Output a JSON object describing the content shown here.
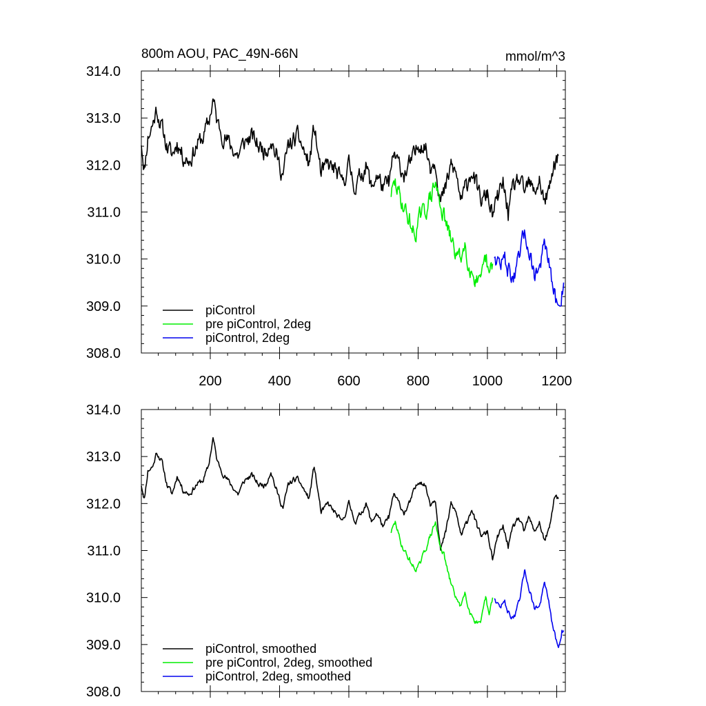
{
  "chart_data": [
    {
      "type": "line",
      "title_left": "800m AOU, PAC_49N-66N",
      "title_right": "mmol/m^3",
      "xlim": [
        1,
        1225
      ],
      "ylim": [
        308,
        314
      ],
      "x_ticks": [
        200,
        400,
        600,
        800,
        1000,
        1200
      ],
      "x_tick_labels": [
        "200",
        "400",
        "600",
        "800",
        "1000",
        "1200"
      ],
      "y_ticks": [
        308,
        309,
        310,
        311,
        312,
        313,
        314
      ],
      "y_tick_labels": [
        "308.0",
        "309.0",
        "310.0",
        "311.0",
        "312.0",
        "313.0",
        "314.0"
      ],
      "grid": false,
      "legend_position": "bottom-left",
      "series": [
        {
          "name": "piControl",
          "color": "#000000",
          "noise": 0.16,
          "seed": 11,
          "points": [
            [
              1,
              312.5
            ],
            [
              10,
              311.9
            ],
            [
              20,
              312.6
            ],
            [
              35,
              312.9
            ],
            [
              45,
              313.2
            ],
            [
              60,
              312.8
            ],
            [
              75,
              312.4
            ],
            [
              90,
              312.2
            ],
            [
              105,
              312.5
            ],
            [
              120,
              312.2
            ],
            [
              140,
              312.1
            ],
            [
              160,
              312.4
            ],
            [
              180,
              312.6
            ],
            [
              195,
              312.9
            ],
            [
              208,
              313.4
            ],
            [
              220,
              312.9
            ],
            [
              240,
              312.6
            ],
            [
              260,
              312.4
            ],
            [
              280,
              312.2
            ],
            [
              300,
              312.5
            ],
            [
              320,
              312.6
            ],
            [
              340,
              312.4
            ],
            [
              360,
              312.3
            ],
            [
              375,
              312.6
            ],
            [
              390,
              312.2
            ],
            [
              410,
              311.8
            ],
            [
              425,
              312.4
            ],
            [
              440,
              312.5
            ],
            [
              455,
              312.6
            ],
            [
              470,
              312.3
            ],
            [
              485,
              312.0
            ],
            [
              500,
              312.8
            ],
            [
              510,
              312.3
            ],
            [
              520,
              311.8
            ],
            [
              540,
              312.0
            ],
            [
              560,
              311.9
            ],
            [
              580,
              311.6
            ],
            [
              600,
              312.0
            ],
            [
              620,
              311.5
            ],
            [
              635,
              311.8
            ],
            [
              650,
              312.0
            ],
            [
              665,
              311.5
            ],
            [
              680,
              311.8
            ],
            [
              700,
              311.5
            ],
            [
              715,
              311.6
            ],
            [
              730,
              312.2
            ],
            [
              745,
              312.0
            ],
            [
              760,
              311.8
            ],
            [
              775,
              312.0
            ],
            [
              790,
              312.2
            ],
            [
              805,
              312.5
            ],
            [
              820,
              312.4
            ],
            [
              835,
              312.0
            ],
            [
              850,
              312.1
            ],
            [
              865,
              311.2
            ],
            [
              880,
              311.5
            ],
            [
              895,
              312.0
            ],
            [
              910,
              311.8
            ],
            [
              925,
              311.2
            ],
            [
              940,
              311.6
            ],
            [
              955,
              311.9
            ],
            [
              970,
              311.5
            ],
            [
              985,
              311.2
            ],
            [
              1000,
              311.4
            ],
            [
              1015,
              310.9
            ],
            [
              1030,
              311.3
            ],
            [
              1045,
              311.6
            ],
            [
              1060,
              311.0
            ],
            [
              1075,
              311.5
            ],
            [
              1090,
              311.7
            ],
            [
              1105,
              311.4
            ],
            [
              1120,
              311.6
            ],
            [
              1135,
              311.4
            ],
            [
              1150,
              311.7
            ],
            [
              1165,
              311.2
            ],
            [
              1180,
              311.5
            ],
            [
              1195,
              312.1
            ],
            [
              1205,
              312.2
            ]
          ]
        },
        {
          "name": "pre piControl, 2deg",
          "color": "#00ee00",
          "noise": 0.16,
          "seed": 29,
          "points": [
            [
              722,
              311.4
            ],
            [
              735,
              311.6
            ],
            [
              748,
              311.3
            ],
            [
              760,
              311.1
            ],
            [
              775,
              310.8
            ],
            [
              790,
              310.5
            ],
            [
              805,
              310.9
            ],
            [
              820,
              311.0
            ],
            [
              835,
              311.3
            ],
            [
              850,
              311.6
            ],
            [
              860,
              311.3
            ],
            [
              875,
              310.9
            ],
            [
              890,
              310.5
            ],
            [
              905,
              310.2
            ],
            [
              920,
              310.0
            ],
            [
              935,
              310.3
            ],
            [
              950,
              309.8
            ],
            [
              965,
              309.6
            ],
            [
              980,
              309.4
            ],
            [
              995,
              310.0
            ],
            [
              1005,
              309.6
            ],
            [
              1015,
              309.9
            ]
          ]
        },
        {
          "name": "piControl, 2deg",
          "color": "#0000ee",
          "noise": 0.16,
          "seed": 47,
          "points": [
            [
              1020,
              310.1
            ],
            [
              1035,
              309.9
            ],
            [
              1050,
              310.0
            ],
            [
              1065,
              309.7
            ],
            [
              1080,
              309.6
            ],
            [
              1095,
              310.1
            ],
            [
              1108,
              310.6
            ],
            [
              1120,
              310.2
            ],
            [
              1135,
              309.7
            ],
            [
              1150,
              309.8
            ],
            [
              1165,
              310.3
            ],
            [
              1175,
              310.0
            ],
            [
              1185,
              309.5
            ],
            [
              1195,
              309.2
            ],
            [
              1205,
              308.9
            ],
            [
              1215,
              309.3
            ],
            [
              1220,
              309.5
            ]
          ]
        }
      ]
    },
    {
      "type": "line",
      "xlim": [
        1,
        1225
      ],
      "ylim": [
        308,
        314
      ],
      "y_ticks": [
        308,
        309,
        310,
        311,
        312,
        313,
        314
      ],
      "y_tick_labels": [
        "308.0",
        "309.0",
        "310.0",
        "311.0",
        "312.0",
        "313.0",
        "314.0"
      ],
      "x_ticks": [
        200,
        400,
        600,
        800,
        1000,
        1200
      ],
      "grid": false,
      "legend_position": "bottom-left",
      "series": [
        {
          "name": "piControl, smoothed",
          "color": "#000000",
          "noise": 0.05,
          "seed": 11,
          "points": [
            [
              1,
              312.4
            ],
            [
              10,
              312.1
            ],
            [
              20,
              312.7
            ],
            [
              35,
              312.8
            ],
            [
              45,
              313.1
            ],
            [
              60,
              312.9
            ],
            [
              75,
              312.4
            ],
            [
              90,
              312.2
            ],
            [
              105,
              312.6
            ],
            [
              120,
              312.3
            ],
            [
              140,
              312.2
            ],
            [
              160,
              312.4
            ],
            [
              180,
              312.5
            ],
            [
              195,
              312.8
            ],
            [
              208,
              313.4
            ],
            [
              220,
              312.9
            ],
            [
              240,
              312.6
            ],
            [
              260,
              312.4
            ],
            [
              280,
              312.2
            ],
            [
              300,
              312.5
            ],
            [
              320,
              312.6
            ],
            [
              340,
              312.4
            ],
            [
              360,
              312.4
            ],
            [
              375,
              312.7
            ],
            [
              390,
              312.3
            ],
            [
              410,
              311.9
            ],
            [
              425,
              312.4
            ],
            [
              440,
              312.5
            ],
            [
              455,
              312.5
            ],
            [
              470,
              312.3
            ],
            [
              485,
              312.1
            ],
            [
              500,
              312.8
            ],
            [
              510,
              312.3
            ],
            [
              520,
              311.8
            ],
            [
              540,
              312.0
            ],
            [
              560,
              311.8
            ],
            [
              580,
              311.6
            ],
            [
              600,
              312.0
            ],
            [
              620,
              311.6
            ],
            [
              635,
              311.8
            ],
            [
              650,
              312.0
            ],
            [
              665,
              311.6
            ],
            [
              680,
              311.8
            ],
            [
              700,
              311.5
            ],
            [
              715,
              311.7
            ],
            [
              730,
              312.2
            ],
            [
              745,
              312.0
            ],
            [
              760,
              311.8
            ],
            [
              775,
              312.0
            ],
            [
              790,
              312.3
            ],
            [
              805,
              312.5
            ],
            [
              820,
              312.4
            ],
            [
              835,
              312.0
            ],
            [
              850,
              312.1
            ],
            [
              865,
              311.0
            ],
            [
              880,
              311.4
            ],
            [
              895,
              312.0
            ],
            [
              910,
              311.8
            ],
            [
              925,
              311.3
            ],
            [
              940,
              311.6
            ],
            [
              955,
              311.9
            ],
            [
              970,
              311.5
            ],
            [
              985,
              311.3
            ],
            [
              1000,
              311.4
            ],
            [
              1015,
              310.8
            ],
            [
              1030,
              311.3
            ],
            [
              1045,
              311.5
            ],
            [
              1060,
              311.1
            ],
            [
              1075,
              311.5
            ],
            [
              1090,
              311.7
            ],
            [
              1105,
              311.4
            ],
            [
              1120,
              311.7
            ],
            [
              1135,
              311.4
            ],
            [
              1150,
              311.6
            ],
            [
              1165,
              311.2
            ],
            [
              1180,
              311.5
            ],
            [
              1195,
              312.2
            ],
            [
              1205,
              312.1
            ]
          ]
        },
        {
          "name": "pre piControl, 2deg, smoothed",
          "color": "#00ee00",
          "noise": 0.05,
          "seed": 29,
          "points": [
            [
              722,
              311.4
            ],
            [
              735,
              311.6
            ],
            [
              748,
              311.2
            ],
            [
              760,
              311.0
            ],
            [
              775,
              310.8
            ],
            [
              790,
              310.6
            ],
            [
              805,
              310.7
            ],
            [
              820,
              311.0
            ],
            [
              835,
              311.3
            ],
            [
              850,
              311.6
            ],
            [
              860,
              311.2
            ],
            [
              875,
              310.9
            ],
            [
              890,
              310.4
            ],
            [
              905,
              310.1
            ],
            [
              920,
              309.8
            ],
            [
              935,
              310.1
            ],
            [
              950,
              309.7
            ],
            [
              965,
              309.5
            ],
            [
              980,
              309.4
            ],
            [
              995,
              310.0
            ],
            [
              1005,
              309.6
            ],
            [
              1015,
              310.0
            ]
          ]
        },
        {
          "name": "piControl, 2deg, smoothed",
          "color": "#0000ee",
          "noise": 0.05,
          "seed": 47,
          "points": [
            [
              1020,
              310.0
            ],
            [
              1035,
              309.8
            ],
            [
              1050,
              309.9
            ],
            [
              1065,
              309.6
            ],
            [
              1080,
              309.6
            ],
            [
              1095,
              310.0
            ],
            [
              1108,
              310.6
            ],
            [
              1120,
              310.2
            ],
            [
              1135,
              309.8
            ],
            [
              1150,
              309.8
            ],
            [
              1165,
              310.3
            ],
            [
              1175,
              310.0
            ],
            [
              1185,
              309.5
            ],
            [
              1195,
              309.2
            ],
            [
              1205,
              308.9
            ],
            [
              1215,
              309.3
            ],
            [
              1220,
              309.3
            ]
          ]
        }
      ]
    }
  ]
}
